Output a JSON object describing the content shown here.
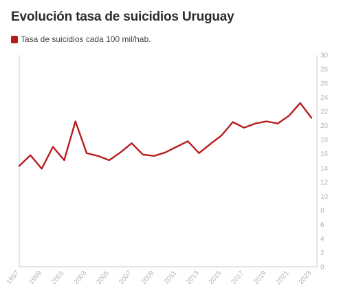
{
  "title": "Evolución tasa de suicidios Uruguay",
  "colors": {
    "series": "#b71c1c",
    "axis": "#cccccc",
    "tick_text": "#b3b3b3"
  },
  "chart_data": {
    "type": "line",
    "title": "Evolución tasa de suicidios Uruguay",
    "xlabel": "",
    "ylabel": "",
    "grid": false,
    "legend_position": "top-left",
    "xlim": [
      1997,
      2023
    ],
    "ylim": [
      0,
      30
    ],
    "y_ticks": [
      0,
      2,
      4,
      6,
      8,
      10,
      12,
      14,
      16,
      18,
      20,
      22,
      24,
      26,
      28,
      30
    ],
    "x_ticks": [
      "1997",
      "1999",
      "2001",
      "2003",
      "2005",
      "2007",
      "2009",
      "2011",
      "2013",
      "2015",
      "2017",
      "2019",
      "2021",
      "2023"
    ],
    "x": [
      1997,
      1998,
      1999,
      2000,
      2001,
      2002,
      2003,
      2004,
      2005,
      2006,
      2007,
      2008,
      2009,
      2010,
      2011,
      2012,
      2013,
      2014,
      2015,
      2016,
      2017,
      2018,
      2019,
      2020,
      2021,
      2022,
      2023
    ],
    "series": [
      {
        "name": "Tasa de suicidios cada 100 mil/hab.",
        "color": "#b71c1c",
        "values": [
          14.3,
          15.8,
          13.9,
          17.0,
          15.1,
          20.6,
          16.1,
          15.7,
          15.1,
          16.2,
          17.5,
          15.9,
          15.7,
          16.2,
          17.0,
          17.8,
          16.1,
          17.4,
          18.6,
          20.5,
          19.7,
          20.3,
          20.6,
          20.3,
          21.4,
          23.2,
          21.1
        ]
      }
    ]
  }
}
